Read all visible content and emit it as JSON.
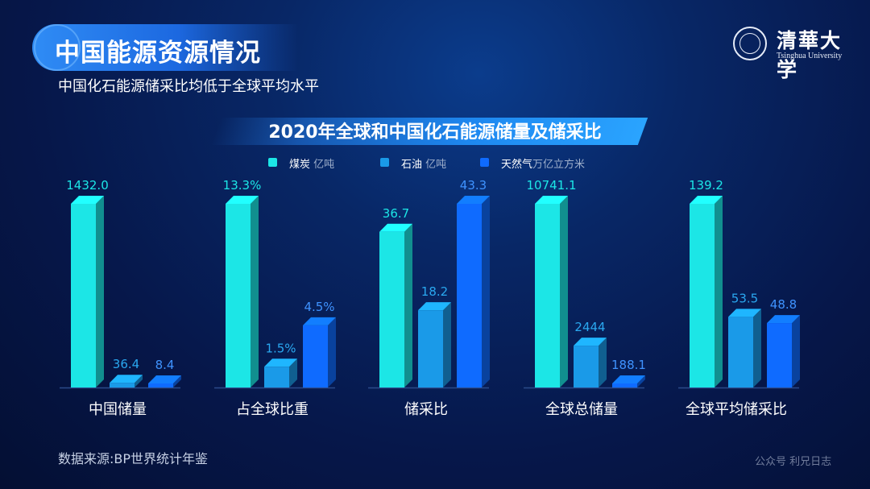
{
  "header": {
    "title": "中国能源资源情况",
    "subtitle": "中国化石能源储采比均低于全球平均水平"
  },
  "logo": {
    "text_cn": "清華大学",
    "text_en": "Tsinghua University"
  },
  "footer": {
    "source": "数据来源:BP世界统计年鉴",
    "watermark": "公众号 利兄日志"
  },
  "chart_data": {
    "type": "bar",
    "title": "2020年全球和中国化石能源储量及储采比",
    "categories": [
      "中国储量",
      "占全球比重",
      "储采比",
      "全球总储量",
      "全球平均储采比"
    ],
    "series": [
      {
        "name": "煤炭",
        "unit": "亿吨",
        "color": "#1ce6e6",
        "values": [
          1432.0,
          13.3,
          36.7,
          10741.1,
          139.2
        ],
        "labels": [
          "1432.0",
          "13.3%",
          "36.7",
          "10741.1",
          "139.2"
        ]
      },
      {
        "name": "石油",
        "unit": "亿吨",
        "color": "#1a9ae8",
        "values": [
          36.4,
          1.5,
          18.2,
          2444,
          53.5
        ],
        "labels": [
          "36.4",
          "1.5%",
          "18.2",
          "2444",
          "53.5"
        ]
      },
      {
        "name": "天然气",
        "unit": "万亿立方米",
        "color": "#0f6bff",
        "values": [
          8.4,
          4.5,
          43.3,
          188.1,
          48.8
        ],
        "labels": [
          "8.4",
          "4.5%",
          "43.3",
          "188.1",
          "48.8"
        ]
      }
    ],
    "group_max": [
      1432.0,
      13.3,
      43.3,
      10741.1,
      139.2
    ],
    "legend_position": "top-center",
    "label_colors": {
      "煤炭": "#1ce6e6",
      "石油": "#2aa8f0",
      "天然气": "#3f93ff"
    },
    "axis_color": "#2b4a8a",
    "grid": false
  }
}
